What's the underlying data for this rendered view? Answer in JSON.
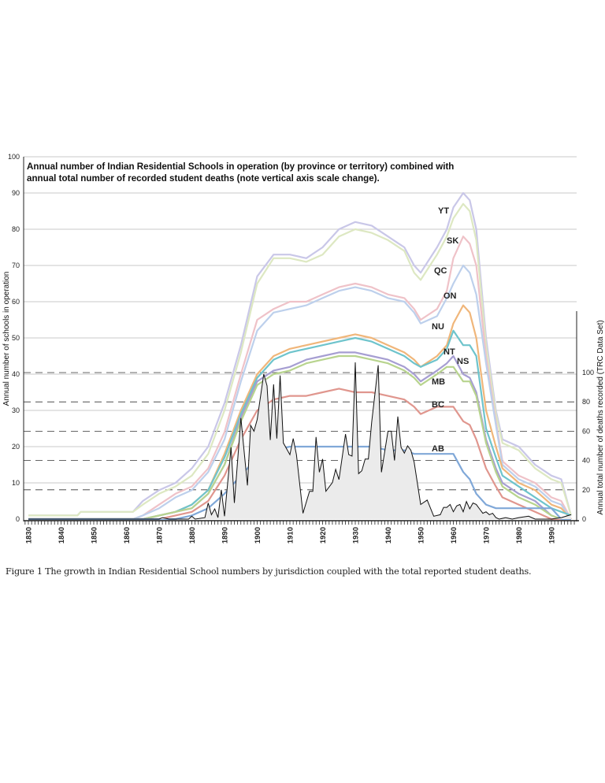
{
  "chart_data": {
    "type": "line",
    "title_line1": "Annual number of Indian Residential Schools in operation (by province or territory) combined with",
    "title_line2": "annual total number of recorded student deaths (note vertical axis scale change).",
    "ylabel": "Annual number of schools in operation",
    "y2label": "Annual total number of deaths recorded (TRC Data Set)",
    "ylim": [
      0,
      100
    ],
    "y2lim": [
      0,
      140
    ],
    "xlim": [
      1828,
      1997
    ],
    "grid": true,
    "y_ticks": [
      "0",
      "10",
      "20",
      "30",
      "40",
      "50",
      "60",
      "70",
      "80",
      "90",
      "100"
    ],
    "y2_ticks": [
      "0",
      "20",
      "40",
      "60",
      "80",
      "100"
    ],
    "x_ticks": [
      "1830",
      "1840",
      "1850",
      "1860",
      "1870",
      "1880",
      "1890",
      "1900",
      "1910",
      "1920",
      "1930",
      "1940",
      "1950",
      "1960",
      "1970",
      "1980",
      "1990"
    ],
    "note": "School series are plotted cumulatively (stacked) in the order AB, BC, MB, NS, NT, NU, ON, QC, SK, YT.",
    "years": [
      1830,
      1845,
      1846,
      1862,
      1865,
      1870,
      1875,
      1880,
      1885,
      1890,
      1895,
      1900,
      1905,
      1910,
      1915,
      1920,
      1925,
      1930,
      1935,
      1940,
      1945,
      1948,
      1950,
      1955,
      1958,
      1960,
      1963,
      1965,
      1967,
      1970,
      1973,
      1975,
      1980,
      1985,
      1990,
      1993,
      1996
    ],
    "series": [
      {
        "name": "YT",
        "color": "#c9c7e8",
        "values": [
          1,
          1,
          2,
          2,
          5,
          8,
          10,
          14,
          20,
          32,
          48,
          67,
          73,
          73,
          72,
          75,
          80,
          82,
          81,
          78,
          75,
          70,
          68,
          75,
          80,
          86,
          90,
          88,
          80,
          50,
          30,
          22,
          20,
          15,
          12,
          11,
          1
        ]
      },
      {
        "name": "SK",
        "color": "#dde8c2",
        "values": [
          1,
          1,
          2,
          2,
          4,
          7,
          9,
          12,
          18,
          30,
          46,
          65,
          72,
          72,
          71,
          73,
          78,
          80,
          79,
          77,
          74,
          68,
          66,
          73,
          78,
          83,
          87,
          85,
          77,
          48,
          29,
          21,
          19,
          14,
          11,
          10,
          1
        ]
      },
      {
        "name": "QC",
        "color": "#efc2c8",
        "values": [
          0,
          0,
          0,
          0,
          1,
          4,
          7,
          9,
          14,
          24,
          40,
          55,
          58,
          60,
          60,
          62,
          64,
          65,
          64,
          62,
          61,
          58,
          55,
          58,
          63,
          72,
          78,
          76,
          70,
          45,
          27,
          16,
          12,
          10,
          6,
          5,
          0
        ]
      },
      {
        "name": "ON",
        "color": "#bdd0ec",
        "values": [
          0,
          0,
          0,
          0,
          1,
          3,
          6,
          8,
          13,
          22,
          38,
          52,
          57,
          58,
          59,
          61,
          63,
          64,
          63,
          61,
          60,
          57,
          54,
          56,
          61,
          65,
          70,
          68,
          62,
          43,
          26,
          15,
          11,
          9,
          5,
          4,
          0
        ]
      },
      {
        "name": "NU",
        "color": "#f0b67a",
        "values": [
          0,
          0,
          0,
          0,
          0,
          1,
          2,
          4,
          8,
          18,
          30,
          40,
          45,
          47,
          48,
          49,
          50,
          51,
          50,
          48,
          46,
          44,
          42,
          45,
          48,
          54,
          59,
          57,
          50,
          30,
          20,
          14,
          10,
          8,
          4,
          3,
          0
        ]
      },
      {
        "name": "NT",
        "color": "#6ec4cc",
        "values": [
          0,
          0,
          0,
          0,
          0,
          1,
          2,
          4,
          8,
          17,
          29,
          39,
          44,
          46,
          47,
          48,
          49,
          50,
          49,
          47,
          45,
          43,
          42,
          44,
          47,
          52,
          48,
          48,
          45,
          25,
          17,
          12,
          9,
          6,
          3,
          2,
          1
        ]
      },
      {
        "name": "NS",
        "color": "#a69ed2",
        "values": [
          0,
          0,
          0,
          0,
          0,
          1,
          2,
          3,
          7,
          15,
          28,
          38,
          41,
          42,
          44,
          45,
          46,
          46,
          45,
          44,
          42,
          40,
          38,
          41,
          43,
          45,
          40,
          39,
          35,
          22,
          14,
          10,
          7,
          5,
          1,
          0,
          0
        ]
      },
      {
        "name": "MB",
        "color": "#b8d48e",
        "values": [
          0,
          0,
          0,
          0,
          0,
          1,
          2,
          3,
          7,
          15,
          27,
          37,
          40,
          41,
          43,
          44,
          45,
          45,
          44,
          43,
          41,
          39,
          37,
          40,
          42,
          42,
          38,
          38,
          34,
          21,
          13,
          9,
          6,
          4,
          1,
          0,
          0
        ]
      },
      {
        "name": "BC",
        "color": "#e0968e",
        "values": [
          0,
          0,
          0,
          0,
          0,
          0,
          1,
          2,
          5,
          12,
          22,
          30,
          33,
          34,
          34,
          35,
          36,
          35,
          35,
          34,
          33,
          31,
          29,
          31,
          31,
          31,
          27,
          26,
          22,
          14,
          9,
          6,
          4,
          2,
          0,
          0,
          0
        ]
      },
      {
        "name": "AB",
        "color": "#80a8d8",
        "values": [
          0,
          0,
          0,
          0,
          0,
          0,
          0,
          1,
          3,
          7,
          12,
          17,
          19,
          20,
          20,
          20,
          20,
          20,
          20,
          19,
          19,
          18,
          18,
          18,
          18,
          18,
          13,
          11,
          7,
          4,
          3,
          3,
          3,
          3,
          3,
          0,
          0
        ]
      }
    ],
    "deaths": {
      "color": "#111111",
      "fill": "#ebebeb",
      "points": [
        [
          1830,
          0
        ],
        [
          1870,
          0
        ],
        [
          1871,
          1
        ],
        [
          1873,
          0
        ],
        [
          1879,
          0
        ],
        [
          1880,
          2
        ],
        [
          1881,
          0
        ],
        [
          1884,
          1
        ],
        [
          1885,
          11
        ],
        [
          1886,
          3
        ],
        [
          1887,
          7
        ],
        [
          1888,
          1
        ],
        [
          1889,
          20
        ],
        [
          1890,
          2
        ],
        [
          1892,
          49
        ],
        [
          1893,
          11
        ],
        [
          1895,
          69
        ],
        [
          1897,
          23
        ],
        [
          1898,
          64
        ],
        [
          1899,
          60
        ],
        [
          1900,
          68
        ],
        [
          1902,
          99
        ],
        [
          1903,
          91
        ],
        [
          1904,
          54
        ],
        [
          1905,
          92
        ],
        [
          1906,
          55
        ],
        [
          1907,
          98
        ],
        [
          1908,
          52
        ],
        [
          1910,
          44
        ],
        [
          1911,
          55
        ],
        [
          1912,
          44
        ],
        [
          1914,
          4
        ],
        [
          1916,
          19
        ],
        [
          1917,
          19
        ],
        [
          1918,
          56
        ],
        [
          1919,
          32
        ],
        [
          1920,
          41
        ],
        [
          1921,
          19
        ],
        [
          1923,
          25
        ],
        [
          1924,
          34
        ],
        [
          1925,
          27
        ],
        [
          1927,
          58
        ],
        [
          1928,
          44
        ],
        [
          1929,
          43
        ],
        [
          1930,
          107
        ],
        [
          1931,
          31
        ],
        [
          1932,
          33
        ],
        [
          1933,
          41
        ],
        [
          1934,
          41
        ],
        [
          1935,
          66
        ],
        [
          1937,
          105
        ],
        [
          1938,
          32
        ],
        [
          1940,
          60
        ],
        [
          1941,
          60
        ],
        [
          1942,
          40
        ],
        [
          1943,
          70
        ],
        [
          1944,
          49
        ],
        [
          1945,
          45
        ],
        [
          1946,
          50
        ],
        [
          1947,
          47
        ],
        [
          1948,
          39
        ],
        [
          1950,
          10
        ],
        [
          1952,
          13
        ],
        [
          1954,
          2
        ],
        [
          1956,
          3
        ],
        [
          1957,
          8
        ],
        [
          1958,
          8
        ],
        [
          1959,
          10
        ],
        [
          1960,
          5
        ],
        [
          1961,
          9
        ],
        [
          1962,
          10
        ],
        [
          1963,
          5
        ],
        [
          1964,
          12
        ],
        [
          1965,
          7
        ],
        [
          1966,
          11
        ],
        [
          1967,
          10
        ],
        [
          1968,
          7
        ],
        [
          1969,
          4
        ],
        [
          1970,
          5
        ],
        [
          1971,
          3
        ],
        [
          1972,
          4
        ],
        [
          1973,
          1
        ],
        [
          1974,
          0
        ],
        [
          1976,
          1
        ],
        [
          1978,
          0
        ],
        [
          1980,
          1
        ],
        [
          1983,
          2
        ],
        [
          1985,
          0
        ],
        [
          1990,
          0
        ],
        [
          1993,
          1
        ],
        [
          1996,
          3
        ]
      ]
    }
  },
  "caption": "Figure 1 The growth in Indian Residential School numbers by jurisdiction coupled with the total reported student deaths."
}
